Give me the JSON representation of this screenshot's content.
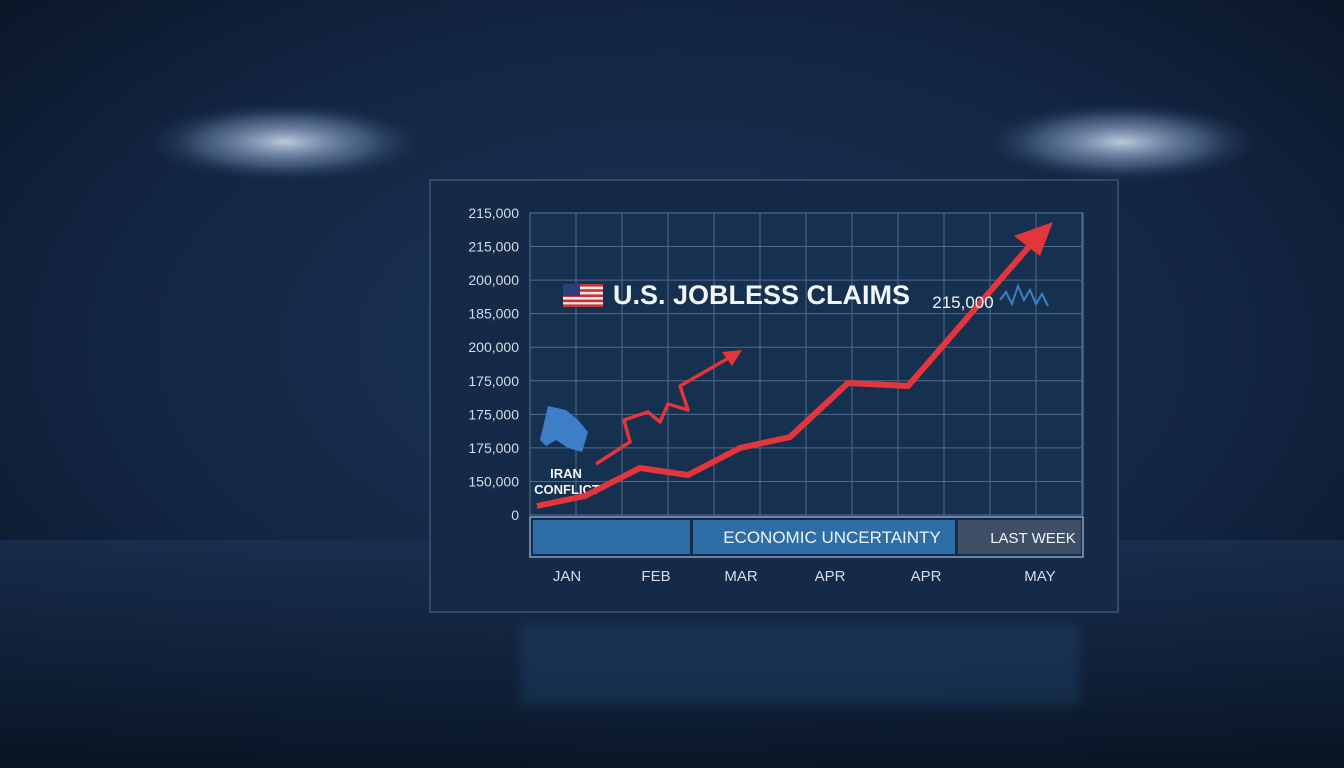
{
  "header": {
    "title": "U.S. JOBLESS CLAIMS"
  },
  "y_axis_labels": [
    "215,000",
    "215,000",
    "200,000",
    "185,000",
    "200,000",
    "175,000",
    "175,000",
    "175,000",
    "150,000",
    "0"
  ],
  "x_axis_labels": [
    "JAN",
    "FEB",
    "MAR",
    "APR",
    "APR",
    "MAY"
  ],
  "annotations": {
    "latest": "215,000",
    "event_line1": "IRAN",
    "event_line2": "CONFLICT"
  },
  "bands": [
    "ECONOMIC UNCERTAINTY",
    "LAST WEEK"
  ]
}
